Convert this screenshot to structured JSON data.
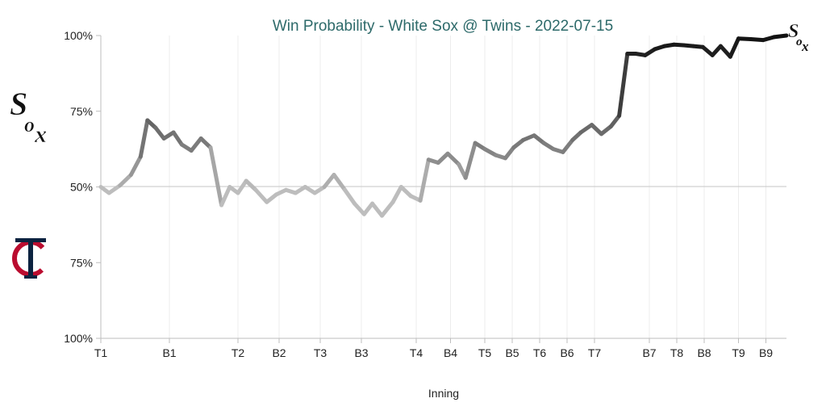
{
  "chart_data": {
    "type": "line",
    "title": "Win Probability - White Sox @ Twins - 2022-07-15",
    "xlabel": "Inning",
    "ylabel": "",
    "y_tick_labels": [
      "100%",
      "75%",
      "50%",
      "75%",
      "100%"
    ],
    "ylim": [
      0,
      100
    ],
    "x_tick_labels": [
      "T1",
      "B1",
      "T2",
      "B2",
      "T3",
      "B3",
      "T4",
      "B4",
      "T5",
      "B5",
      "T6",
      "B6",
      "T7",
      "B7",
      "T8",
      "B8",
      "T9",
      "B9"
    ],
    "x_tick_positions": [
      0,
      5,
      10,
      13,
      16,
      19,
      23,
      25.5,
      28,
      30,
      32,
      34,
      36,
      40,
      42,
      44,
      46.5,
      48.5
    ],
    "x_range": [
      0,
      50
    ],
    "midline_value": 50,
    "top_team": "White Sox",
    "bottom_team": "Twins",
    "series": [
      {
        "values": [
          [
            0,
            50
          ],
          [
            0.6,
            48
          ],
          [
            1.4,
            50.5
          ],
          [
            2.2,
            54
          ],
          [
            2.9,
            60
          ],
          [
            3.4,
            72
          ],
          [
            4.0,
            69.5
          ],
          [
            4.6,
            66
          ],
          [
            5.3,
            68
          ],
          [
            5.9,
            64
          ],
          [
            6.6,
            62
          ],
          [
            7.3,
            66
          ],
          [
            8.0,
            63
          ],
          [
            8.8,
            44
          ],
          [
            9.4,
            50
          ],
          [
            10.0,
            48
          ],
          [
            10.6,
            52
          ],
          [
            11.3,
            49
          ],
          [
            12.1,
            45
          ],
          [
            12.8,
            47.5
          ],
          [
            13.5,
            49
          ],
          [
            14.2,
            48
          ],
          [
            14.9,
            50
          ],
          [
            15.6,
            48
          ],
          [
            16.3,
            50
          ],
          [
            17.0,
            54
          ],
          [
            17.8,
            49
          ],
          [
            18.5,
            44.5
          ],
          [
            19.2,
            41
          ],
          [
            19.8,
            44.5
          ],
          [
            20.5,
            40.5
          ],
          [
            21.3,
            45
          ],
          [
            21.9,
            50
          ],
          [
            22.6,
            47
          ],
          [
            23.3,
            45.5
          ],
          [
            23.9,
            59
          ],
          [
            24.6,
            58
          ],
          [
            25.3,
            61
          ],
          [
            26.1,
            57.5
          ],
          [
            26.6,
            53
          ],
          [
            27.3,
            64.5
          ],
          [
            28.0,
            62.5
          ],
          [
            28.8,
            60.5
          ],
          [
            29.5,
            59.5
          ],
          [
            30.1,
            63
          ],
          [
            30.8,
            65.5
          ],
          [
            31.6,
            67
          ],
          [
            32.3,
            64.5
          ],
          [
            33.0,
            62.5
          ],
          [
            33.7,
            61.5
          ],
          [
            34.4,
            65.5
          ],
          [
            35.0,
            68
          ],
          [
            35.8,
            70.5
          ],
          [
            36.5,
            67.5
          ],
          [
            37.2,
            70
          ],
          [
            37.8,
            73.5
          ],
          [
            38.4,
            94
          ],
          [
            39.0,
            94
          ],
          [
            39.7,
            93.5
          ],
          [
            40.4,
            95.5
          ],
          [
            41.1,
            96.5
          ],
          [
            41.8,
            97
          ],
          [
            42.5,
            96.8
          ],
          [
            43.2,
            96.5
          ],
          [
            43.9,
            96.2
          ],
          [
            44.6,
            93.5
          ],
          [
            45.2,
            96.5
          ],
          [
            45.9,
            93
          ],
          [
            46.5,
            99
          ],
          [
            47.4,
            98.8
          ],
          [
            48.3,
            98.5
          ],
          [
            49.1,
            99.5
          ],
          [
            50.0,
            100
          ]
        ]
      }
    ],
    "colors": {
      "early_line": "#bdbdbd",
      "late_line": "#111111",
      "title": "#2d6a6a",
      "twins_navy": "#0c2340",
      "twins_red": "#ba0c2f"
    },
    "logos": {
      "top": "white-sox-logo",
      "bottom": "twins-logo",
      "end": "white-sox-logo"
    }
  }
}
